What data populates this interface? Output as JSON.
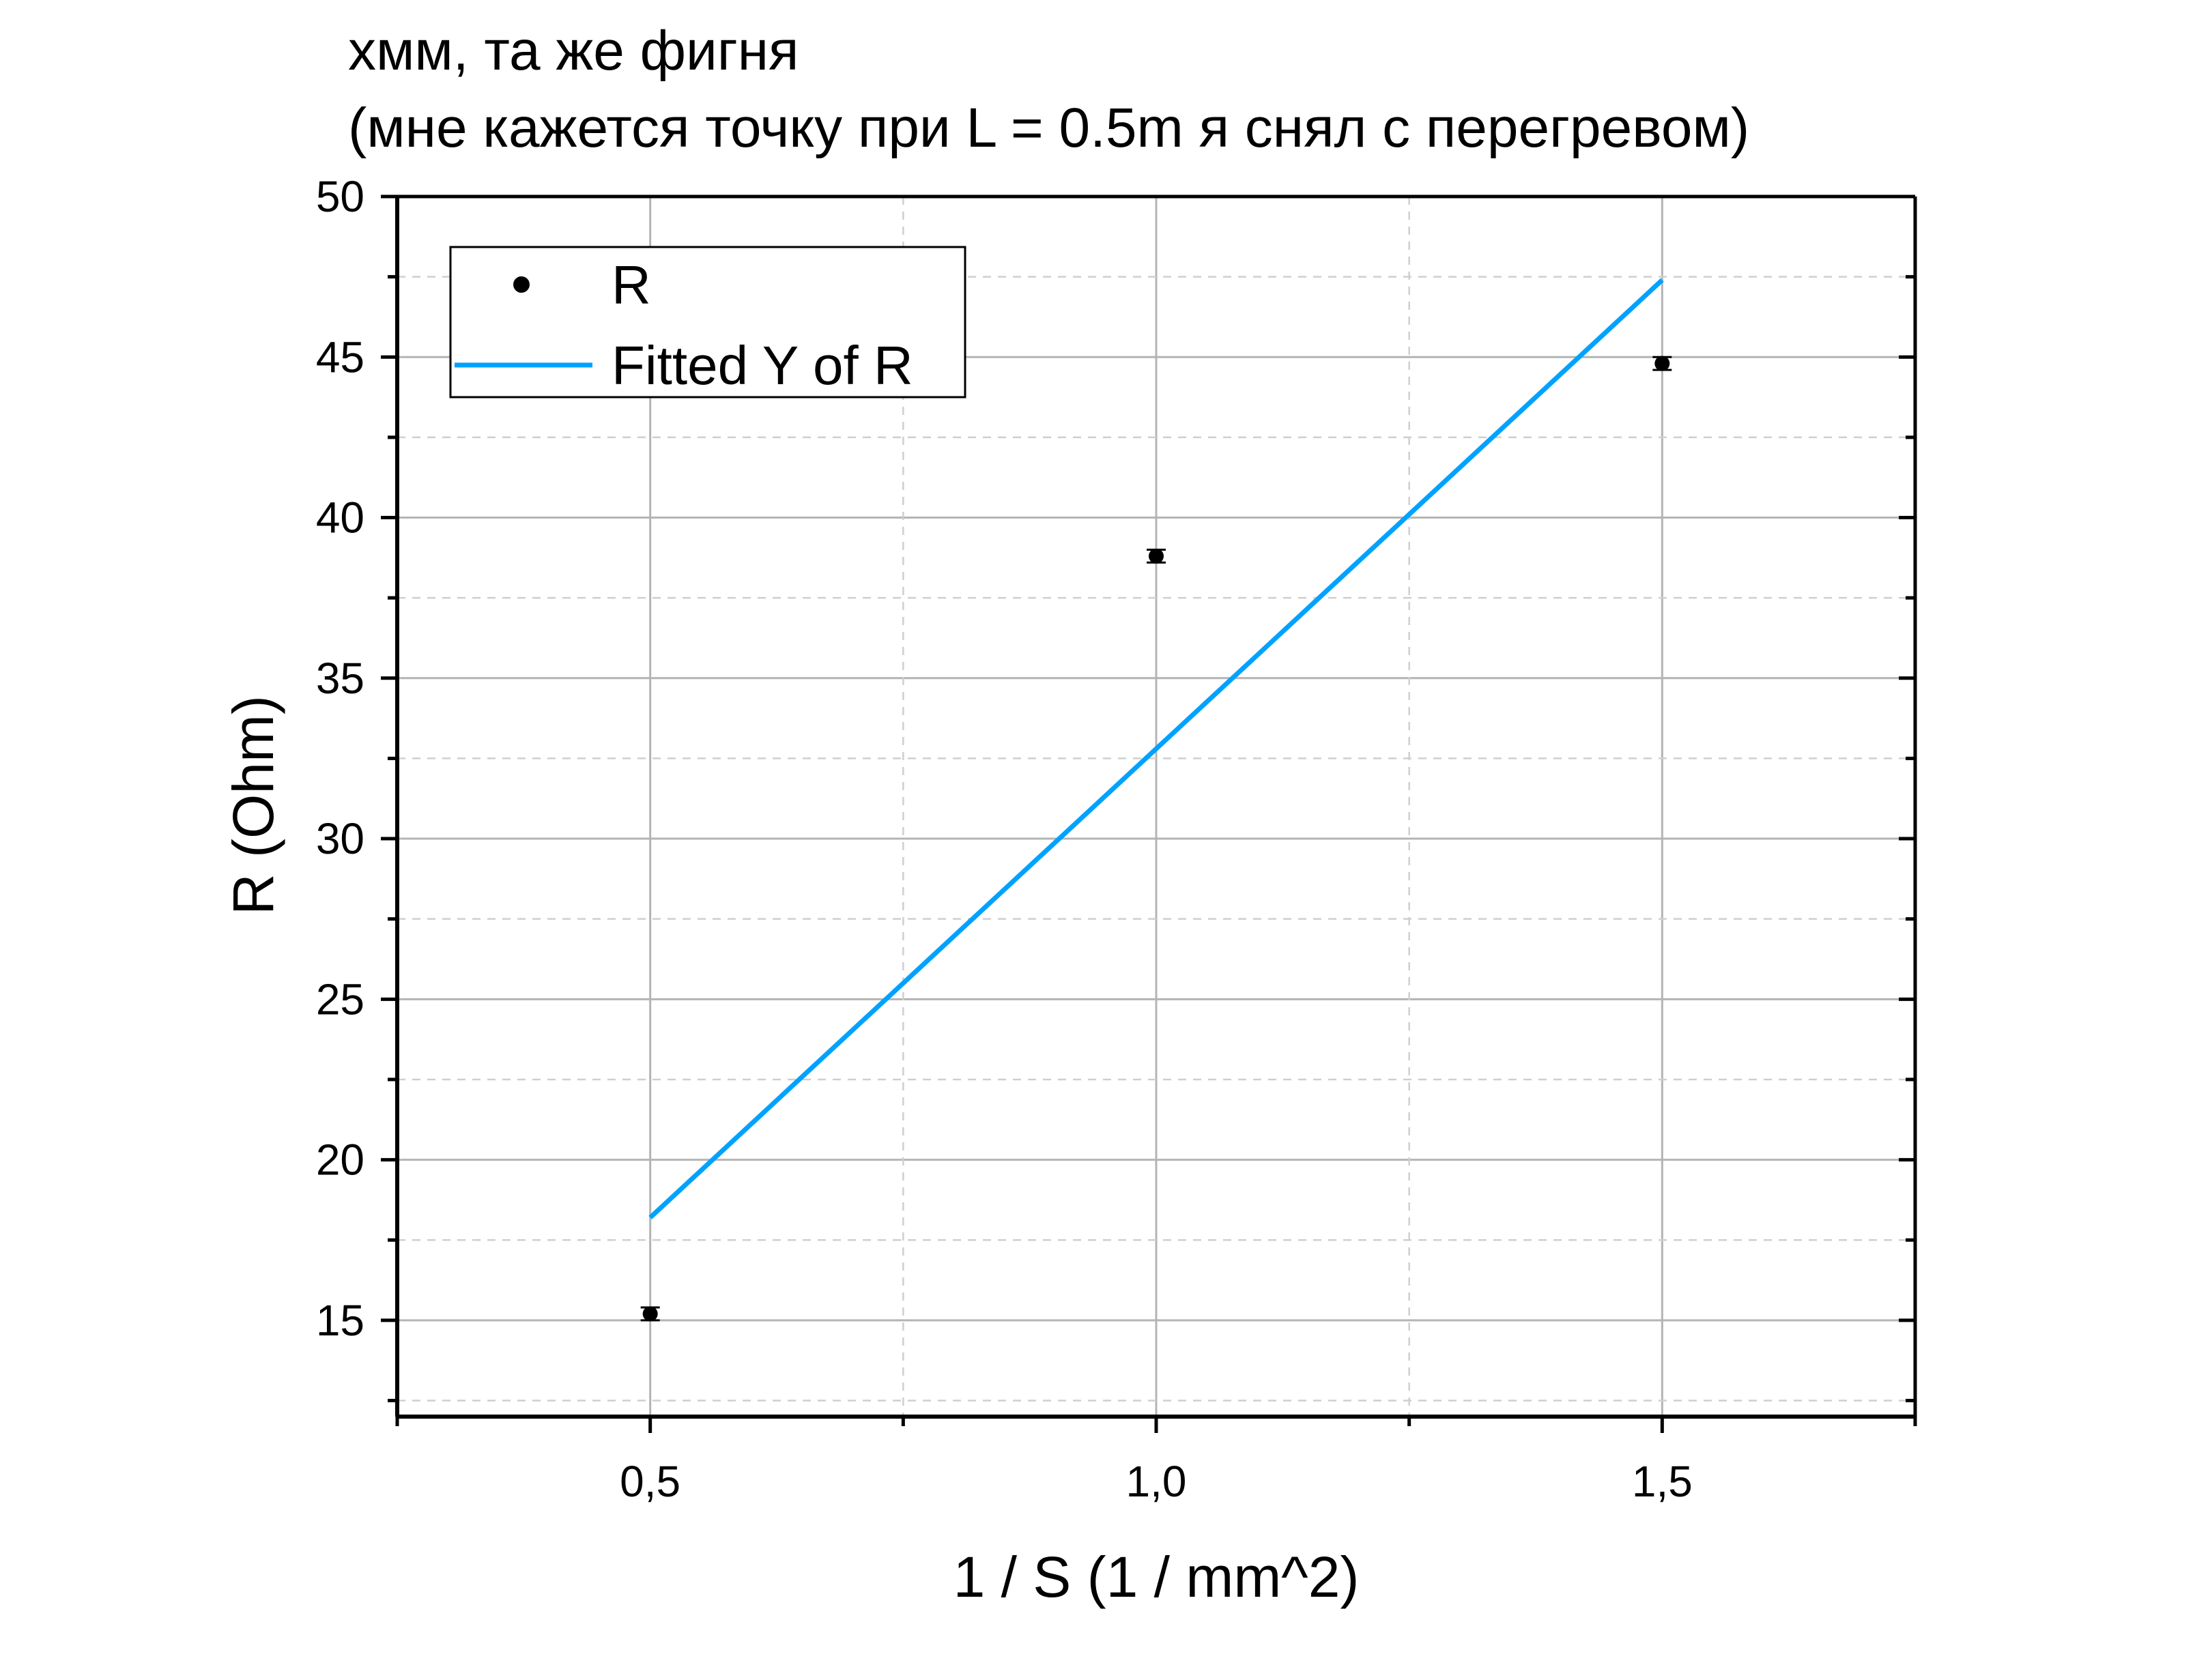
{
  "chart_data": {
    "type": "scatter",
    "title_lines": [
      "хмм, та же фигня",
      "(мне кажется точку при L = 0.5m я снял с перегревом)"
    ],
    "xlabel": "1 / S (1 / mm^2)",
    "ylabel": "R (Ohm)",
    "xlim": [
      0.25,
      1.75
    ],
    "ylim": [
      12,
      50
    ],
    "xticks": [
      0.5,
      1.0,
      1.5
    ],
    "xtick_labels": [
      "0,5",
      "1,0",
      "1,5"
    ],
    "yticks": [
      15,
      20,
      25,
      30,
      35,
      40,
      45,
      50
    ],
    "ytick_labels": [
      "15",
      "20",
      "25",
      "30",
      "35",
      "40",
      "45",
      "50"
    ],
    "grid": true,
    "legend_position": "top-left",
    "series": [
      {
        "name": "R",
        "kind": "scatter",
        "color": "#000000",
        "x": [
          0.5,
          1.0,
          1.5
        ],
        "y": [
          15.2,
          38.8,
          44.8
        ],
        "yerr": [
          0.2,
          0.2,
          0.2
        ]
      },
      {
        "name": "Fitted Y of R",
        "kind": "line",
        "color": "#00a2ff",
        "x": [
          0.5,
          1.5
        ],
        "y": [
          18.2,
          47.4
        ]
      }
    ]
  }
}
